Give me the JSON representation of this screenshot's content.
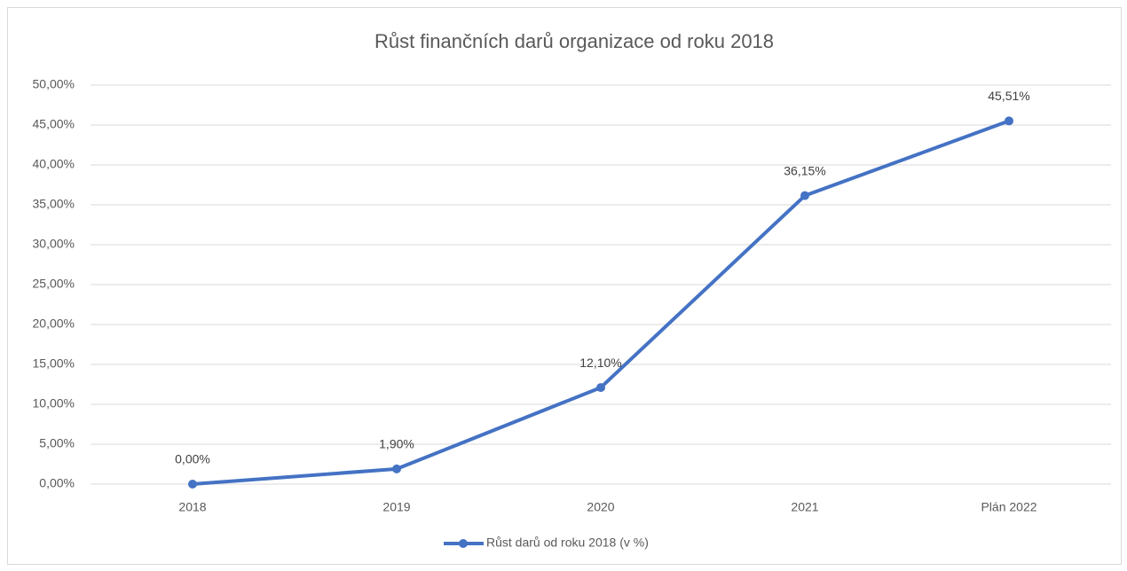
{
  "chart_data": {
    "type": "line",
    "title": "Růst finančních darů organizace od roku 2018",
    "categories": [
      "2018",
      "2019",
      "2020",
      "2021",
      "Plán 2022"
    ],
    "series": [
      {
        "name": "Růst darů od roku 2018 (v %)",
        "color": "#4472c4",
        "values": [
          0,
          1.9,
          12.1,
          36.15,
          45.51
        ],
        "value_labels": [
          "0,00%",
          "1,90%",
          "12,10%",
          "36,15%",
          "45,51%"
        ]
      }
    ],
    "ylim": [
      0,
      50
    ],
    "yticks": [
      {
        "value": 0,
        "label": "0,00%"
      },
      {
        "value": 5,
        "label": "5,00%"
      },
      {
        "value": 10,
        "label": "10,00%"
      },
      {
        "value": 15,
        "label": "15,00%"
      },
      {
        "value": 20,
        "label": "20,00%"
      },
      {
        "value": 25,
        "label": "25,00%"
      },
      {
        "value": 30,
        "label": "30,00%"
      },
      {
        "value": 35,
        "label": "35,00%"
      },
      {
        "value": 40,
        "label": "40,00%"
      },
      {
        "value": 45,
        "label": "45,00%"
      },
      {
        "value": 50,
        "label": "50,00%"
      }
    ],
    "grid": true,
    "legend": "bottom"
  }
}
